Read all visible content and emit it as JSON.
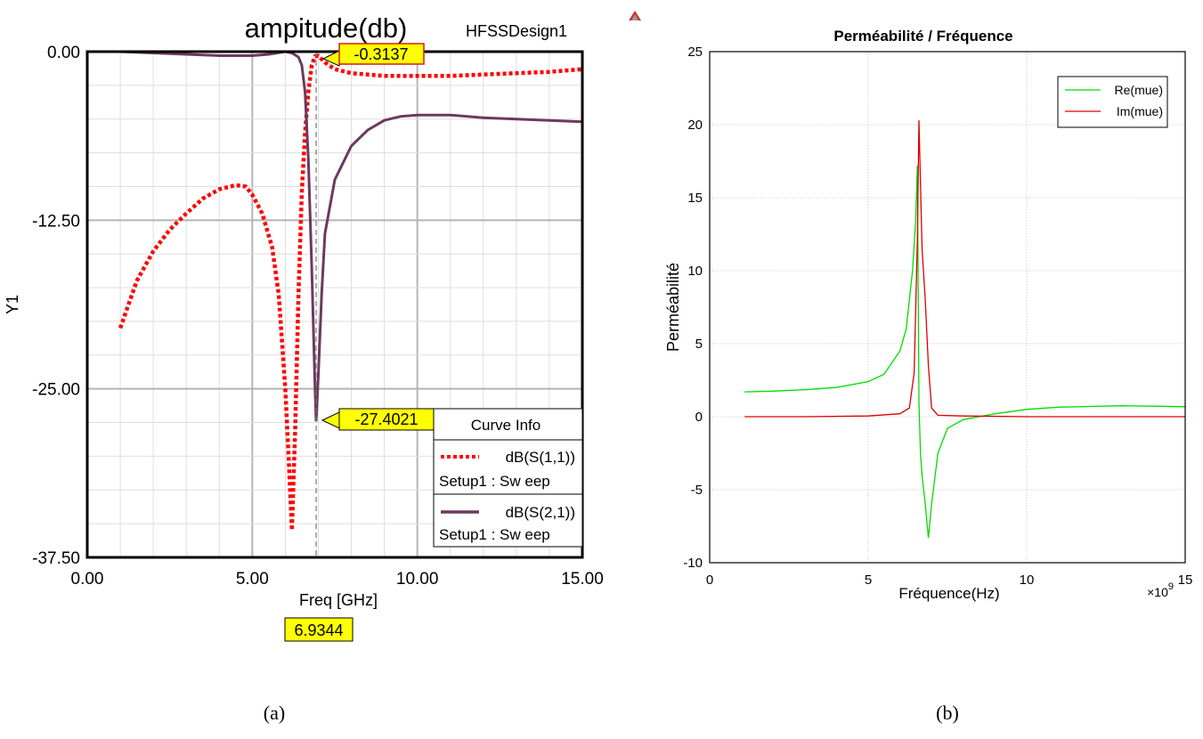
{
  "chart_data": [
    {
      "panel_label": "(a)",
      "type": "line",
      "title": "ampitude(db)",
      "design_name": "HFSSDesign1",
      "xlabel": "Freq [GHz]",
      "ylabel": "Y1",
      "xlim": [
        0,
        15
      ],
      "ylim": [
        -37.5,
        0
      ],
      "x_ticks": [
        "0.00",
        "5.00",
        "10.00",
        "15.00"
      ],
      "y_ticks": [
        "0.00",
        "-12.50",
        "-25.00",
        "-37.50"
      ],
      "grid": true,
      "legend": {
        "title": "Curve Info",
        "placement": "bottom-right",
        "entries": [
          {
            "name": "dB(S(1,1))",
            "setup": "Setup1 : Sw eep"
          },
          {
            "name": "dB(S(2,1))",
            "setup": "Setup1 : Sw eep"
          }
        ]
      },
      "markers": {
        "freq_label": "6.9344",
        "freq_value": 6.9344,
        "s11_label": "-0.3137",
        "s11_value": -0.3137,
        "s21_label": "-27.4021",
        "s21_value": -27.4021
      },
      "series": [
        {
          "name": "dB(S(1,1))",
          "color": "#ff0000",
          "style": "dotted",
          "x": [
            1.0,
            1.5,
            2.0,
            2.5,
            3.0,
            3.5,
            4.0,
            4.5,
            4.8,
            5.0,
            5.3,
            5.6,
            5.8,
            6.0,
            6.1,
            6.2,
            6.3,
            6.4,
            6.5,
            6.6,
            6.7,
            6.8,
            6.9,
            7.0,
            7.2,
            7.5,
            8.0,
            8.5,
            9.0,
            10.0,
            11.0,
            12.0,
            13.0,
            14.0,
            15.0
          ],
          "y": [
            -20.5,
            -17.0,
            -14.8,
            -13.2,
            -12.0,
            -10.9,
            -10.2,
            -9.9,
            -10.0,
            -10.6,
            -12.0,
            -14.5,
            -18.0,
            -25.0,
            -30.0,
            -35.5,
            -28.0,
            -18.0,
            -10.5,
            -6.0,
            -3.0,
            -1.0,
            -0.35,
            -0.3137,
            -0.8,
            -1.3,
            -1.6,
            -1.7,
            -1.8,
            -1.8,
            -1.8,
            -1.7,
            -1.6,
            -1.5,
            -1.3
          ]
        },
        {
          "name": "dB(S(2,1))",
          "color": "#6b3a5f",
          "style": "solid",
          "x": [
            1.0,
            2.0,
            3.0,
            4.0,
            5.0,
            5.5,
            6.0,
            6.2,
            6.4,
            6.5,
            6.6,
            6.7,
            6.8,
            6.9,
            6.9344,
            7.0,
            7.1,
            7.2,
            7.5,
            8.0,
            8.5,
            9.0,
            9.5,
            10.0,
            11.0,
            12.0,
            13.0,
            14.0,
            15.0
          ],
          "y": [
            0.0,
            -0.1,
            -0.2,
            -0.3,
            -0.3,
            -0.2,
            0.0,
            -0.1,
            -0.4,
            -1.0,
            -3.0,
            -8.0,
            -16.0,
            -25.0,
            -27.4021,
            -24.0,
            -18.0,
            -13.5,
            -9.5,
            -7.0,
            -5.8,
            -5.1,
            -4.8,
            -4.7,
            -4.7,
            -4.9,
            -5.0,
            -5.1,
            -5.2
          ]
        }
      ]
    },
    {
      "panel_label": "(b)",
      "type": "line",
      "title": "Perméabilité / Fréquence",
      "xlabel": "Fréquence(Hz)",
      "x_multiplier": "×10",
      "x_multiplier_exp": "9",
      "ylabel": "Perméabilité",
      "xlim": [
        0,
        15
      ],
      "ylim": [
        -10,
        25
      ],
      "x_ticks": [
        "0",
        "5",
        "10",
        "15"
      ],
      "y_ticks": [
        "25",
        "20",
        "15",
        "10",
        "5",
        "0",
        "-5",
        "-10"
      ],
      "grid": true,
      "legend": {
        "placement": "top-right"
      },
      "series": [
        {
          "name": "Re(mue)",
          "color": "#00dd00",
          "x": [
            1.1,
            2.0,
            3.0,
            4.0,
            5.0,
            5.5,
            6.0,
            6.2,
            6.4,
            6.5,
            6.55,
            6.6,
            6.65,
            6.7,
            6.8,
            6.9,
            7.0,
            7.2,
            7.5,
            8.0,
            8.5,
            9.0,
            10.0,
            11.0,
            12.0,
            13.0,
            14.0,
            15.0
          ],
          "y": [
            1.7,
            1.75,
            1.85,
            2.0,
            2.4,
            2.9,
            4.5,
            6.0,
            10.0,
            13.5,
            17.2,
            1.0,
            -2.5,
            -4.0,
            -6.0,
            -8.3,
            -6.0,
            -2.5,
            -0.8,
            -0.2,
            0.0,
            0.2,
            0.5,
            0.65,
            0.7,
            0.75,
            0.72,
            0.68
          ]
        },
        {
          "name": "Im(mue)",
          "color": "#dd0000",
          "x": [
            1.1,
            3.0,
            5.0,
            6.0,
            6.3,
            6.45,
            6.55,
            6.6,
            6.7,
            6.8,
            6.9,
            7.0,
            7.2,
            8.0,
            10.0,
            12.0,
            15.0
          ],
          "y": [
            0.0,
            0.0,
            0.05,
            0.2,
            0.6,
            3.0,
            12.0,
            20.3,
            11.5,
            8.0,
            3.5,
            0.6,
            0.1,
            0.05,
            0.0,
            0.0,
            0.0
          ]
        }
      ]
    }
  ]
}
